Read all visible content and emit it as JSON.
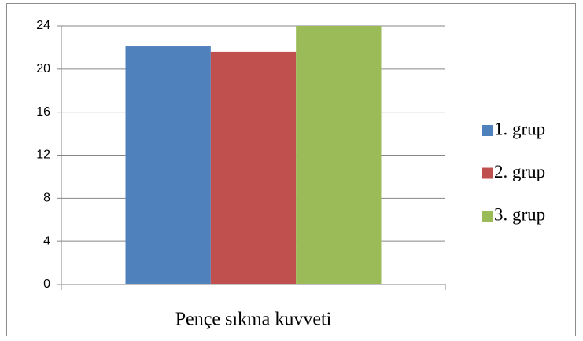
{
  "chart_data": {
    "type": "bar",
    "categories": [
      "Pençe sıkma kuvveti"
    ],
    "series": [
      {
        "name": "1. grup",
        "color": "#4f81bd",
        "values": [
          22.1
        ]
      },
      {
        "name": "2. grup",
        "color": "#c0504d",
        "values": [
          21.6
        ]
      },
      {
        "name": "3. grup",
        "color": "#9bbb59",
        "values": [
          24
        ]
      }
    ],
    "ylim": [
      0,
      24
    ],
    "yticks": [
      0,
      4,
      8,
      12,
      16,
      20,
      24
    ],
    "grid": true,
    "legend": "right"
  }
}
